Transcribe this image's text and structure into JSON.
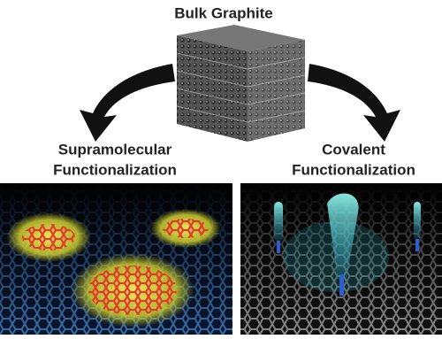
{
  "title": "Bulk Graphite",
  "branches": [
    {
      "label_lines": [
        "Supramolecular",
        "Functionalization"
      ]
    },
    {
      "label_lines": [
        "Covalent",
        "Functionalization"
      ]
    }
  ]
}
